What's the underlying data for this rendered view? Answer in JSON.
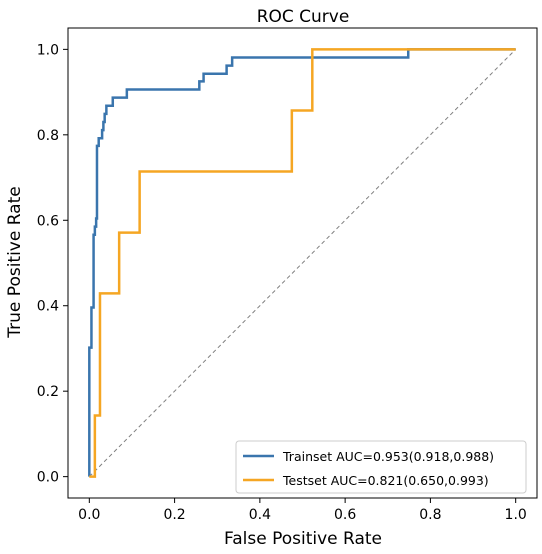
{
  "chart_data": {
    "type": "line",
    "title": "ROC Curve",
    "xlabel": "False Positive Rate",
    "ylabel": "True Positive Rate",
    "xlim": [
      -0.05,
      1.05
    ],
    "ylim": [
      -0.05,
      1.05
    ],
    "xticks": [
      "0.0",
      "0.2",
      "0.4",
      "0.6",
      "0.8",
      "1.0"
    ],
    "yticks": [
      "0.0",
      "0.2",
      "0.4",
      "0.6",
      "0.8",
      "1.0"
    ],
    "grid": false,
    "legend_position": "lower-right",
    "reference_line": {
      "x": [
        0,
        1
      ],
      "y": [
        0,
        1
      ],
      "style": "dashed",
      "color": "#808080"
    },
    "series": [
      {
        "name": "Trainset AUC=0.953(0.918,0.988)",
        "color": "#3a75ad",
        "x": [
          0,
          0,
          0.005,
          0.005,
          0.01,
          0.01,
          0.013,
          0.013,
          0.016,
          0.016,
          0.018,
          0.018,
          0.022,
          0.022,
          0.03,
          0.03,
          0.033,
          0.033,
          0.036,
          0.036,
          0.04,
          0.04,
          0.045,
          0.045,
          0.055,
          0.055,
          0.07,
          0.07,
          0.088,
          0.088,
          0.258,
          0.258,
          0.268,
          0.268,
          0.322,
          0.322,
          0.335,
          0.335,
          0.748,
          0.748,
          1.0
        ],
        "y": [
          0,
          0.302,
          0.302,
          0.396,
          0.396,
          0.566,
          0.566,
          0.585,
          0.585,
          0.604,
          0.604,
          0.774,
          0.774,
          0.792,
          0.792,
          0.811,
          0.811,
          0.83,
          0.83,
          0.849,
          0.849,
          0.868,
          0.868,
          0.868,
          0.868,
          0.887,
          0.887,
          0.887,
          0.887,
          0.906,
          0.906,
          0.925,
          0.925,
          0.943,
          0.943,
          0.962,
          0.962,
          0.981,
          0.981,
          1.0,
          1.0
        ]
      },
      {
        "name": "Testset AUC=0.821(0.650,0.993)",
        "color": "#f5a623",
        "x": [
          0,
          0.013,
          0.013,
          0.025,
          0.025,
          0.07,
          0.07,
          0.118,
          0.118,
          0.475,
          0.475,
          0.523,
          0.523,
          1.0
        ],
        "y": [
          0,
          0,
          0.143,
          0.143,
          0.429,
          0.429,
          0.571,
          0.571,
          0.714,
          0.714,
          0.857,
          0.857,
          1.0,
          1.0
        ]
      }
    ]
  }
}
